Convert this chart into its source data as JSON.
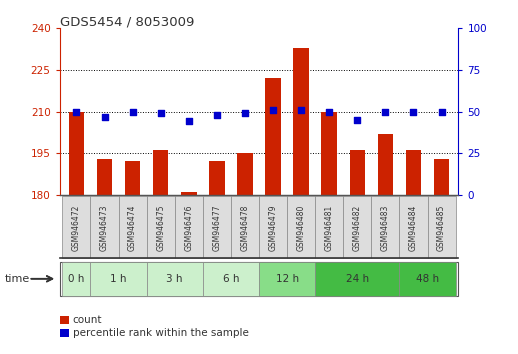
{
  "title": "GDS5454 / 8053009",
  "samples": [
    "GSM946472",
    "GSM946473",
    "GSM946474",
    "GSM946475",
    "GSM946476",
    "GSM946477",
    "GSM946478",
    "GSM946479",
    "GSM946480",
    "GSM946481",
    "GSM946482",
    "GSM946483",
    "GSM946484",
    "GSM946485"
  ],
  "count_values": [
    210,
    193,
    192,
    196,
    181,
    192,
    195,
    222,
    233,
    210,
    196,
    202,
    196,
    193
  ],
  "percentile_values": [
    50,
    47,
    50,
    49,
    44,
    48,
    49,
    51,
    51,
    50,
    45,
    50,
    50,
    50
  ],
  "time_groups": [
    {
      "label": "0 h",
      "n": 1,
      "color": "#ccf0cc"
    },
    {
      "label": "1 h",
      "n": 2,
      "color": "#ccf0cc"
    },
    {
      "label": "3 h",
      "n": 2,
      "color": "#ccf0cc"
    },
    {
      "label": "6 h",
      "n": 2,
      "color": "#ccf0cc"
    },
    {
      "label": "12 h",
      "n": 2,
      "color": "#88dd88"
    },
    {
      "label": "24 h",
      "n": 3,
      "color": "#44bb44"
    },
    {
      "label": "48 h",
      "n": 2,
      "color": "#44bb44"
    }
  ],
  "ylim_left": [
    180,
    240
  ],
  "ylim_right": [
    0,
    100
  ],
  "yticks_left": [
    180,
    195,
    210,
    225,
    240
  ],
  "yticks_right": [
    0,
    25,
    50,
    75,
    100
  ],
  "bar_color": "#cc2200",
  "dot_color": "#0000cc",
  "grid_color": "#000000",
  "bg_color": "#ffffff",
  "left_tick_color": "#cc2200",
  "right_tick_color": "#0000cc",
  "bar_width": 0.55,
  "sample_box_color": "#dddddd",
  "sample_box_edge": "#888888",
  "legend_count_color": "#cc2200",
  "legend_pct_color": "#0000cc",
  "time_label_color": "#333333",
  "title_color": "#333333"
}
